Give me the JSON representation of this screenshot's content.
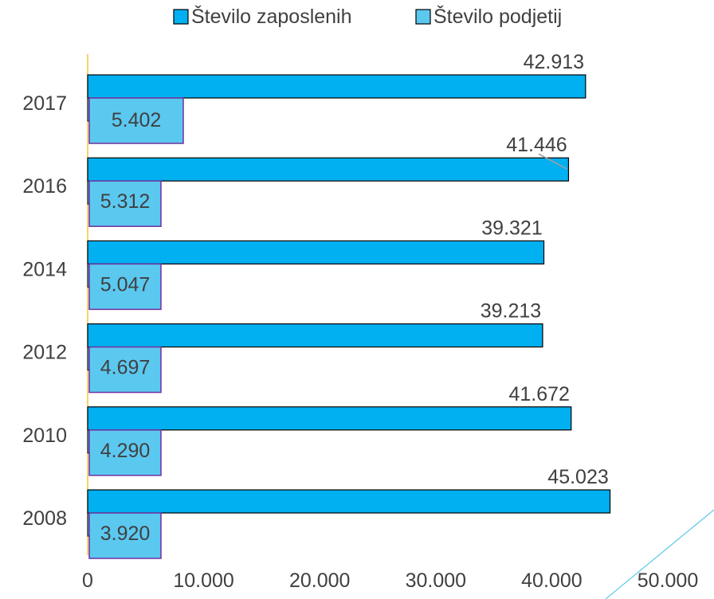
{
  "chart_data": {
    "type": "bar",
    "orientation": "horizontal",
    "categories": [
      "2017",
      "2016",
      "2014",
      "2012",
      "2010",
      "2008"
    ],
    "series": [
      {
        "name": "Število zaposlenih",
        "values": [
          42913,
          41446,
          39321,
          39213,
          41672,
          45023
        ],
        "labels": [
          "42.913",
          "41.446",
          "39.321",
          "39.213",
          "41.672",
          "45.023"
        ]
      },
      {
        "name": "Število podjetij",
        "values": [
          5402,
          5312,
          5047,
          4697,
          4290,
          3920
        ],
        "labels": [
          "5.402",
          "5.312",
          "5.047",
          "4.697",
          "4.290",
          "3.920"
        ]
      }
    ],
    "xlim": [
      0,
      50000
    ],
    "x_ticks": [
      0,
      10000,
      20000,
      30000,
      40000,
      50000
    ],
    "x_tick_labels": [
      "0",
      "10.000",
      "20.000",
      "30.000",
      "40.000",
      "50.000"
    ],
    "legend_position": "top",
    "grid": false,
    "colors": {
      "zaposleni": "#00B0F0",
      "podjetja": "#5BC8F0",
      "podjetja_border": "#7030A0",
      "axis": "#F5C242",
      "accent_line": "#5BC8E8"
    }
  }
}
